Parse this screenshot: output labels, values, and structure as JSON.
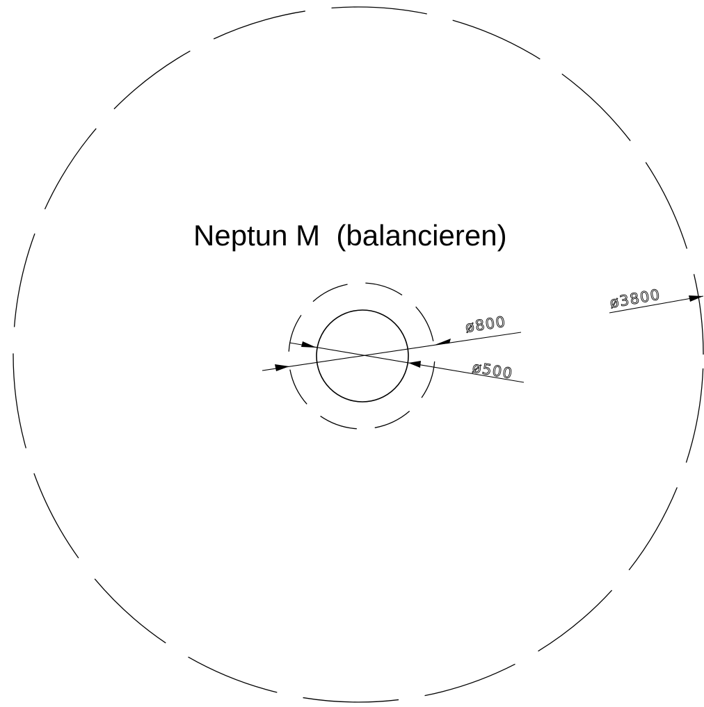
{
  "title": "Neptun M  (balancieren)",
  "dimensions": {
    "outer_diameter": "ø3800",
    "inner_dashed_diameter": "ø800",
    "solid_diameter": "ø500"
  },
  "colors": {
    "line": "#000000",
    "background": "#ffffff"
  }
}
